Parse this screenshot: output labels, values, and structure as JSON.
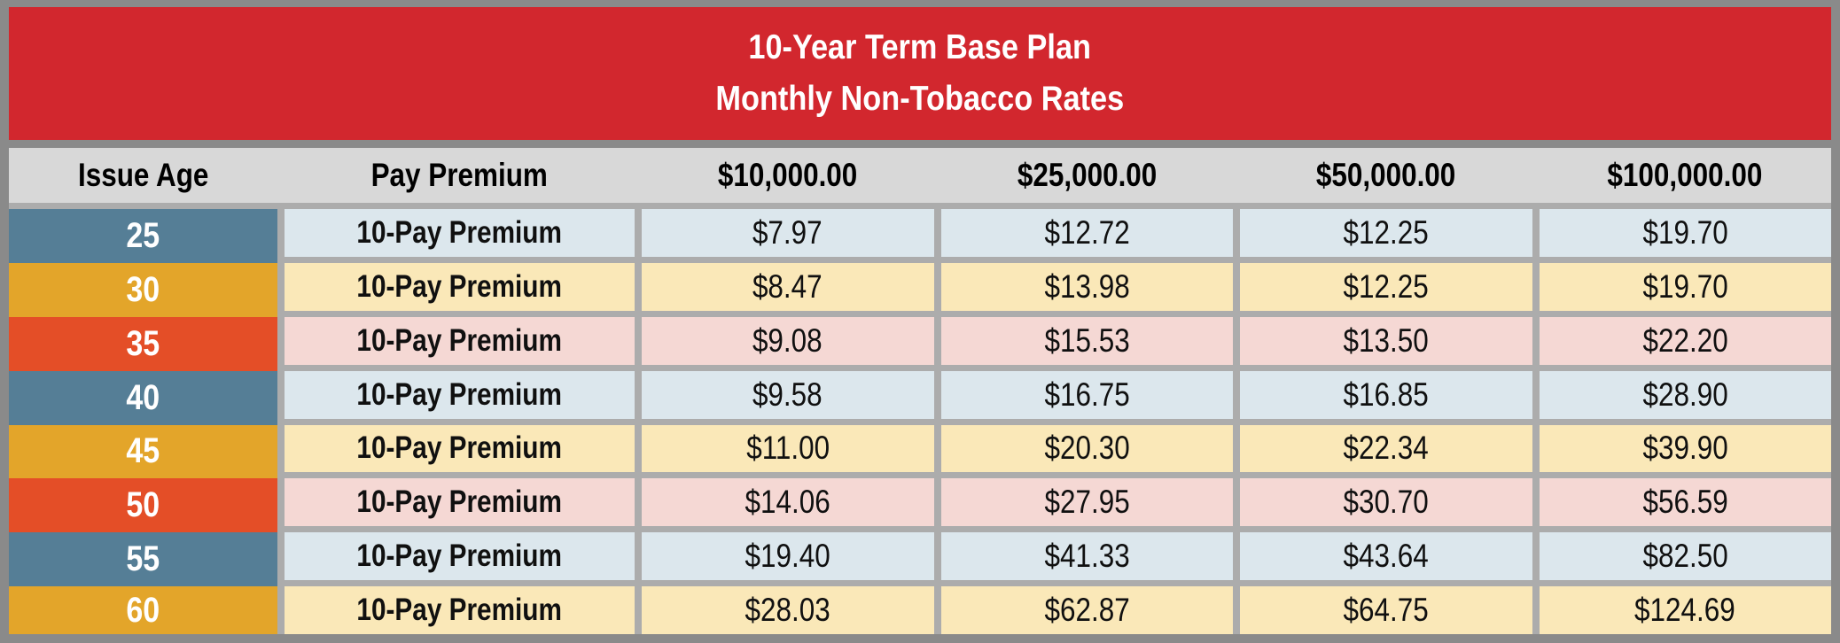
{
  "chart_data": {
    "type": "table",
    "title": "10-Year Term Base Plan",
    "subtitle": "Monthly Non-Tobacco Rates",
    "columns": [
      "Issue Age",
      "Pay Premium",
      "$10,000.00",
      "$25,000.00",
      "$50,000.00",
      "$100,000.00"
    ],
    "rows": [
      {
        "issue_age": "25",
        "pay_premium": "10-Pay Premium",
        "rates": [
          "$7.97",
          "$12.72",
          "$12.25",
          "$19.70"
        ],
        "theme": "blue"
      },
      {
        "issue_age": "30",
        "pay_premium": "10-Pay Premium",
        "rates": [
          "$8.47",
          "$13.98",
          "$12.25",
          "$19.70"
        ],
        "theme": "gold"
      },
      {
        "issue_age": "35",
        "pay_premium": "10-Pay Premium",
        "rates": [
          "$9.08",
          "$15.53",
          "$13.50",
          "$22.20"
        ],
        "theme": "red"
      },
      {
        "issue_age": "40",
        "pay_premium": "10-Pay Premium",
        "rates": [
          "$9.58",
          "$16.75",
          "$16.85",
          "$28.90"
        ],
        "theme": "blue"
      },
      {
        "issue_age": "45",
        "pay_premium": "10-Pay Premium",
        "rates": [
          "$11.00",
          "$20.30",
          "$22.34",
          "$39.90"
        ],
        "theme": "gold"
      },
      {
        "issue_age": "50",
        "pay_premium": "10-Pay Premium",
        "rates": [
          "$14.06",
          "$27.95",
          "$30.70",
          "$56.59"
        ],
        "theme": "red"
      },
      {
        "issue_age": "55",
        "pay_premium": "10-Pay Premium",
        "rates": [
          "$19.40",
          "$41.33",
          "$43.64",
          "$82.50"
        ],
        "theme": "blue"
      },
      {
        "issue_age": "60",
        "pay_premium": "10-Pay Premium",
        "rates": [
          "$28.03",
          "$62.87",
          "$64.75",
          "$124.69"
        ],
        "theme": "gold"
      }
    ]
  },
  "colors": {
    "title_bg": "#D2272E",
    "title_text": "#FFFFFF",
    "header_bg": "#D8D8D8",
    "outer_border": "#8A8A8A",
    "gridline": "#ACACAC",
    "age_blue": "#557E96",
    "age_gold": "#E3A52A",
    "age_red": "#E44E27",
    "tint_blue": "#DCE7ED",
    "tint_gold": "#FAE8B8",
    "tint_red": "#F5D8D4",
    "text_dark": "#101010"
  }
}
